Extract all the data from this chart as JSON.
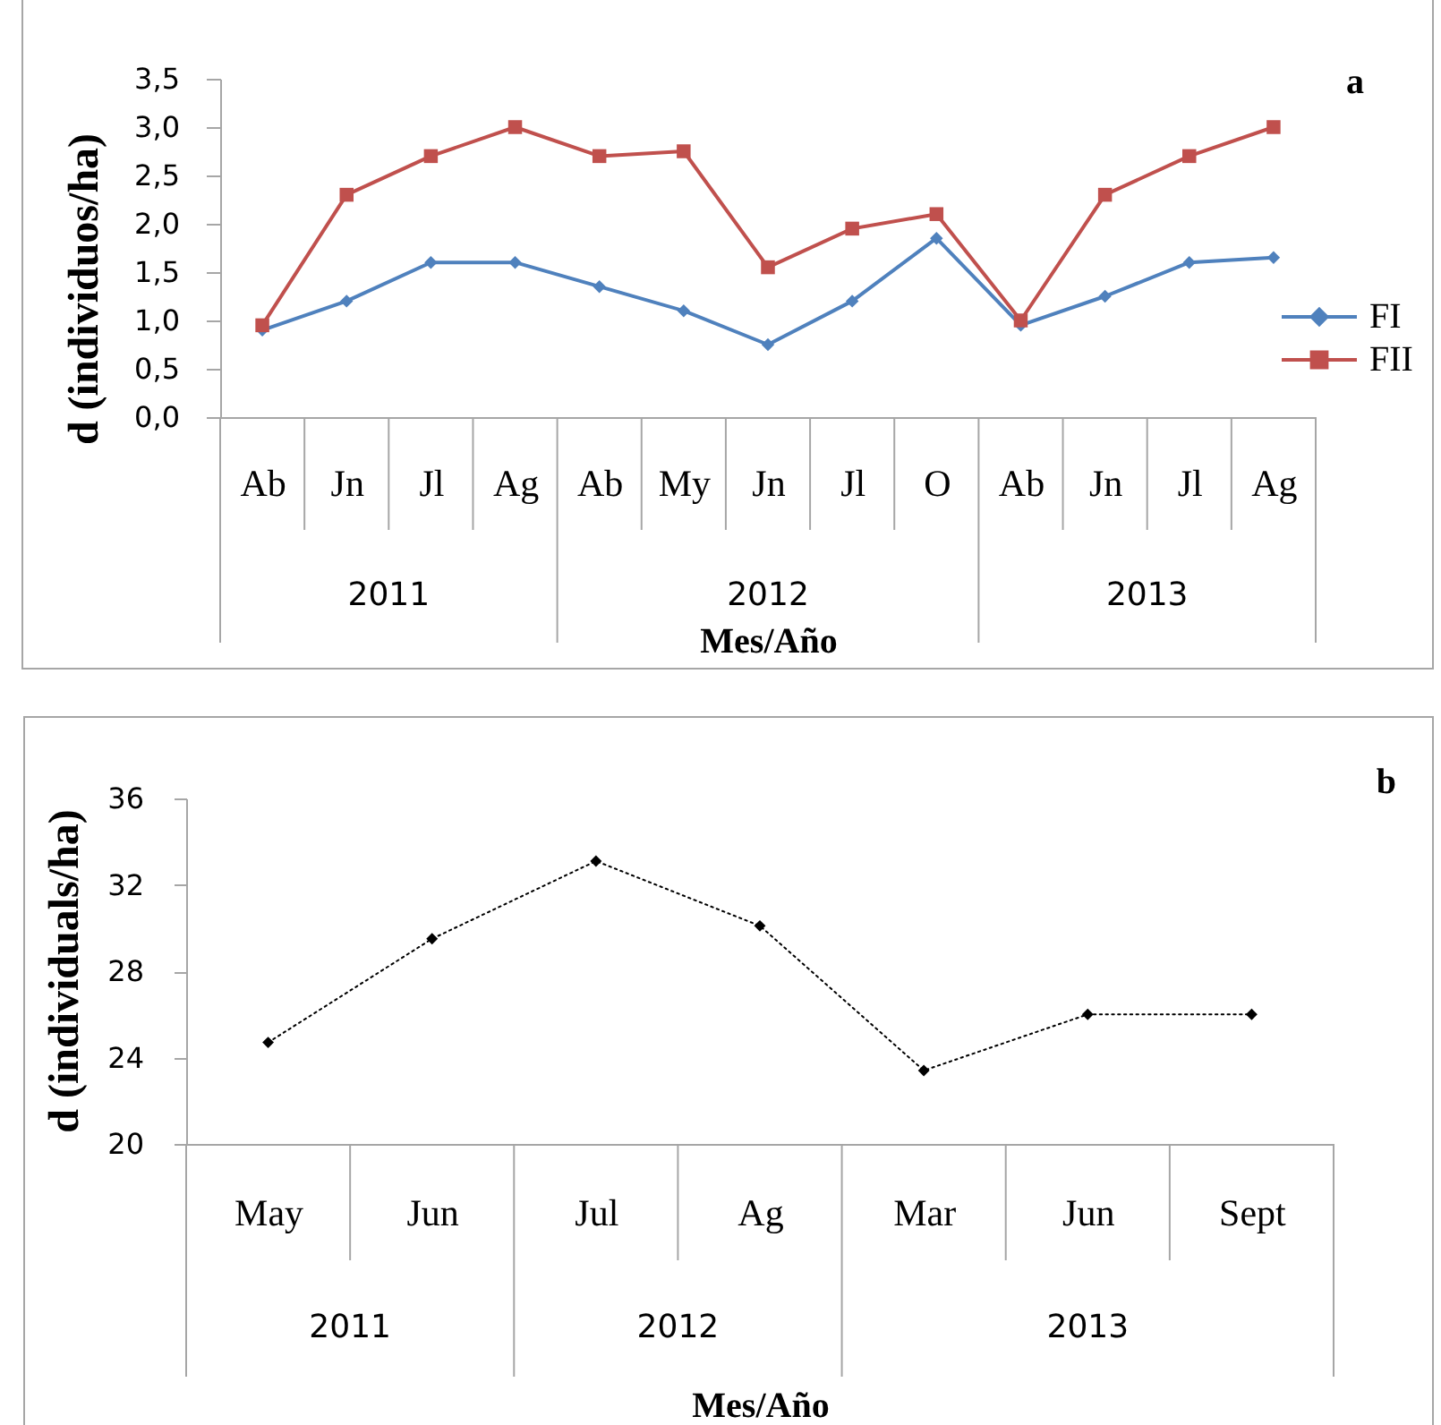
{
  "chart_data": [
    {
      "type": "line",
      "ylabel": "d (individuos/ha)",
      "xlabel": "Mes/Año",
      "categories": [
        "Ab",
        "Jn",
        "Jl",
        "Ag",
        "Ab",
        "My",
        "Jn",
        "Jl",
        "O",
        "Ab",
        "Jn",
        "Jl",
        "Ag"
      ],
      "annotations": [
        "a",
        "2011",
        "2012",
        "2013"
      ],
      "series": [
        {
          "name": "FI",
          "color": "#4f81bd",
          "marker": "diamond",
          "values": [
            0.9,
            1.2,
            1.6,
            1.6,
            1.35,
            1.1,
            0.75,
            1.2,
            1.85,
            0.95,
            1.25,
            1.6,
            1.65
          ]
        },
        {
          "name": "FII",
          "color": "#c0504d",
          "marker": "square",
          "values": [
            0.95,
            2.3,
            2.7,
            3.0,
            2.7,
            2.75,
            1.55,
            1.95,
            2.1,
            1.0,
            2.3,
            2.7,
            3.0
          ]
        }
      ],
      "ylim": [
        0,
        3.5
      ],
      "yticks": [
        {
          "value": 0,
          "label": "0,0"
        },
        {
          "value": 0.5,
          "label": "0,5"
        },
        {
          "value": 1,
          "label": "1,0"
        },
        {
          "value": 1.5,
          "label": "1,5"
        },
        {
          "value": 2,
          "label": "2,0"
        },
        {
          "value": 2.5,
          "label": "2,5"
        },
        {
          "value": 3,
          "label": "3,0"
        },
        {
          "value": 3.5,
          "label": "3,5"
        }
      ],
      "line_style": "solid",
      "legend": "right"
    },
    {
      "type": "line",
      "ylabel": "d (individuals/ha)",
      "xlabel": "Mes/Año",
      "categories": [
        "May",
        "Jun",
        "Jul",
        "Ag",
        "Mar",
        "Jun",
        "Sept"
      ],
      "annotations": [
        "b",
        "2011",
        "2012",
        "2013"
      ],
      "series": [
        {
          "color": "#000000",
          "values": [
            24.7,
            29.5,
            33.1,
            30.1,
            23.4,
            26,
            26
          ]
        }
      ],
      "ylim": [
        20,
        36
      ],
      "yticks": [
        20,
        24,
        28,
        32,
        36
      ],
      "marker": "diamond",
      "line_style": "dotted"
    }
  ]
}
